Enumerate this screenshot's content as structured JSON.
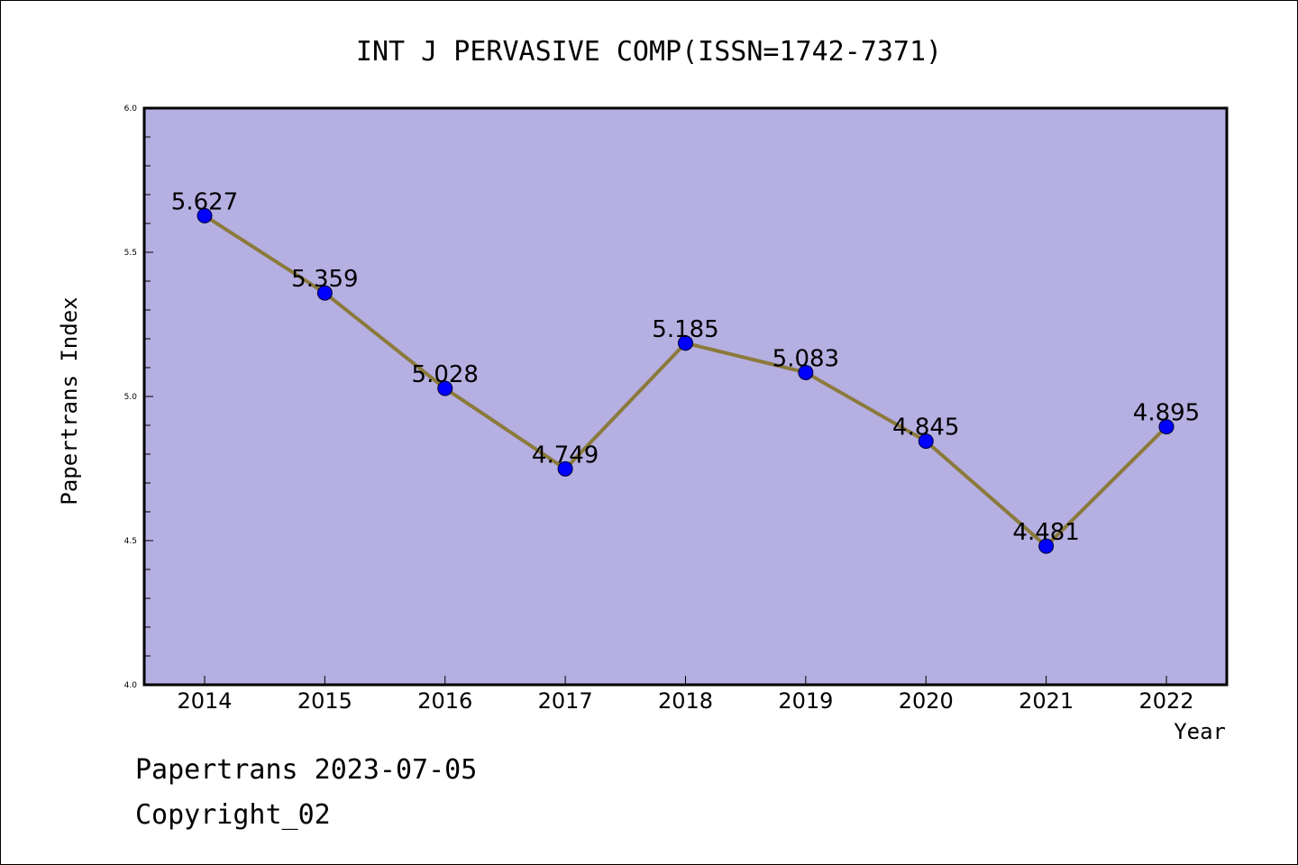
{
  "chart_data": {
    "type": "line",
    "title": "INT J PERVASIVE COMP(ISSN=1742-7371)",
    "xlabel": "Year",
    "ylabel": "Papertrans Index",
    "categories": [
      "2014",
      "2015",
      "2016",
      "2017",
      "2018",
      "2019",
      "2020",
      "2021",
      "2022"
    ],
    "values": [
      5.627,
      5.359,
      5.028,
      4.749,
      5.185,
      5.083,
      4.845,
      4.481,
      4.895
    ],
    "data_labels": [
      "5.627",
      "5.359",
      "5.028",
      "4.749",
      "5.185",
      "5.083",
      "4.845",
      "4.481",
      "4.895"
    ],
    "yticks": [
      "4.0",
      "4.5",
      "5.0",
      "5.5",
      "6.0"
    ],
    "ylim": [
      4.0,
      6.0
    ],
    "grid": false,
    "colors": {
      "plot_background": "#b5afe2",
      "line": "#8b7a3a",
      "marker": "#0000ff"
    }
  },
  "footer": {
    "line1": "Papertrans 2023-07-05",
    "line2": "Copyright_02"
  }
}
